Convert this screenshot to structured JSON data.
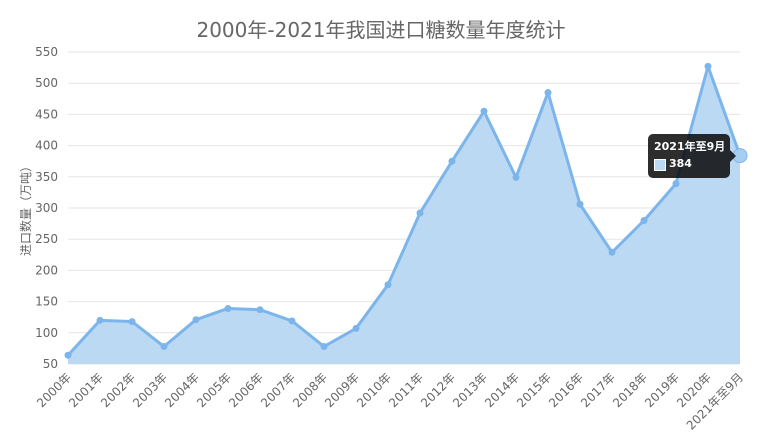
{
  "chart_data": {
    "type": "area",
    "title": "2000年-2021年我国进口糖数量年度统计",
    "ylabel": "进口数量（万吨）",
    "xlabel": "",
    "ylim": [
      50,
      550
    ],
    "yticks": [
      50,
      100,
      150,
      200,
      250,
      300,
      350,
      400,
      450,
      500,
      550
    ],
    "grid": true,
    "legend": "none",
    "categories": [
      "2000年",
      "2001年",
      "2002年",
      "2003年",
      "2004年",
      "2005年",
      "2006年",
      "2007年",
      "2008年",
      "2009年",
      "2010年",
      "2011年",
      "2012年",
      "2013年",
      "2014年",
      "2015年",
      "2016年",
      "2017年",
      "2018年",
      "2019年",
      "2020年",
      "2021年至9月"
    ],
    "series": [
      {
        "values": [
          64,
          120,
          118,
          78,
          121,
          139,
          137,
          119,
          78,
          107,
          177,
          292,
          375,
          455,
          349,
          485,
          306,
          229,
          280,
          339,
          527,
          384
        ]
      }
    ],
    "colors": {
      "line": "#7cb5ec",
      "fill": "#bcd9f4",
      "grid": "#e6e6e6"
    }
  },
  "tooltip": {
    "title": "2021年至9月",
    "value": "384"
  }
}
